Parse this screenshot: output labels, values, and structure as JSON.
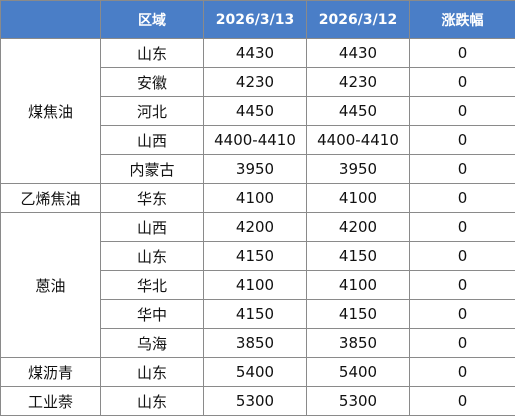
{
  "header": {
    "category": "",
    "region": "区域",
    "date1": "2026/3/13",
    "date2": "2026/3/12",
    "change": "涨跌幅"
  },
  "groups": [
    {
      "name": "煤焦油",
      "rows": [
        {
          "region": "山东",
          "v1": "4430",
          "v2": "4430",
          "chg": "0"
        },
        {
          "region": "安徽",
          "v1": "4230",
          "v2": "4230",
          "chg": "0"
        },
        {
          "region": "河北",
          "v1": "4450",
          "v2": "4450",
          "chg": "0"
        },
        {
          "region": "山西",
          "v1": "4400-4410",
          "v2": "4400-4410",
          "chg": "0"
        },
        {
          "region": "内蒙古",
          "v1": "3950",
          "v2": "3950",
          "chg": "0"
        }
      ]
    },
    {
      "name": "乙烯焦油",
      "rows": [
        {
          "region": "华东",
          "v1": "4100",
          "v2": "4100",
          "chg": "0"
        }
      ]
    },
    {
      "name": "蒽油",
      "rows": [
        {
          "region": "山西",
          "v1": "4200",
          "v2": "4200",
          "chg": "0"
        },
        {
          "region": "山东",
          "v1": "4150",
          "v2": "4150",
          "chg": "0"
        },
        {
          "region": "华北",
          "v1": "4100",
          "v2": "4100",
          "chg": "0"
        },
        {
          "region": "华中",
          "v1": "4150",
          "v2": "4150",
          "chg": "0"
        },
        {
          "region": "乌海",
          "v1": "3850",
          "v2": "3850",
          "chg": "0"
        }
      ]
    },
    {
      "name": "煤沥青",
      "rows": [
        {
          "region": "山东",
          "v1": "5400",
          "v2": "5400",
          "chg": "0"
        }
      ]
    },
    {
      "name": "工业萘",
      "rows": [
        {
          "region": "山东",
          "v1": "5300",
          "v2": "5300",
          "chg": "0"
        }
      ]
    }
  ]
}
